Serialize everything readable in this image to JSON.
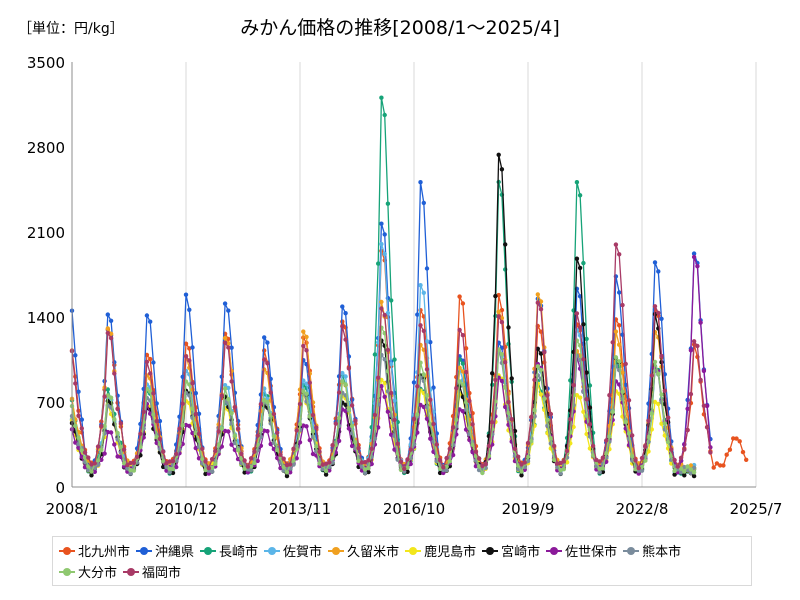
{
  "unit_label": "［単位：円/kg］",
  "chart_data": {
    "type": "line",
    "title": "みかん価格の推移[2008/1～2025/4]",
    "xlabel": "",
    "ylabel": "",
    "ylim": [
      0,
      3500
    ],
    "yticks": [
      0,
      700,
      1400,
      2100,
      2800,
      3500
    ],
    "xticks": [
      {
        "label": "2008/1",
        "pos": 2008.0
      },
      {
        "label": "2010/12",
        "pos": 2010.917
      },
      {
        "label": "2013/11",
        "pos": 2013.833
      },
      {
        "label": "2016/10",
        "pos": 2016.75
      },
      {
        "label": "2019/9",
        "pos": 2019.667
      },
      {
        "label": "2022/8",
        "pos": 2022.583
      },
      {
        "label": "2025/7",
        "pos": 2025.5
      }
    ],
    "xlim": [
      2008.0,
      2025.5
    ],
    "grid": "vertical",
    "legend_position": "bottom",
    "series": [
      {
        "name": "北九州市",
        "color": "#e8531f",
        "base": 170,
        "peaks": [
          1200,
          1320,
          1100,
          1180,
          1250,
          1100,
          1260,
          1380,
          1950,
          1450,
          1550,
          1550,
          1350,
          1350,
          1380,
          1450,
          1150,
          430
        ]
      },
      {
        "name": "沖縄県",
        "color": "#1f5fd6",
        "base": 150,
        "peaks": [
          1520,
          1420,
          1400,
          1560,
          1540,
          1250,
          1050,
          1480,
          2150,
          2480,
          1100,
          1200,
          1550,
          1620,
          1710,
          1880,
          1940,
          0
        ]
      },
      {
        "name": "長崎市",
        "color": "#16a378",
        "base": 140,
        "peaks": [
          720,
          780,
          820,
          800,
          700,
          760,
          820,
          900,
          3230,
          820,
          1050,
          2500,
          850,
          2540,
          1040,
          1000,
          0,
          0
        ]
      },
      {
        "name": "佐賀市",
        "color": "#5bb5e8",
        "base": 150,
        "peaks": [
          600,
          750,
          850,
          950,
          820,
          780,
          900,
          950,
          2000,
          1650,
          950,
          1150,
          1000,
          1300,
          1050,
          950,
          0,
          0
        ]
      },
      {
        "name": "久留米市",
        "color": "#f0a020",
        "base": 165,
        "peaks": [
          750,
          1300,
          900,
          1050,
          1250,
          980,
          1280,
          850,
          1500,
          1200,
          1000,
          1450,
          1580,
          1100,
          1250,
          1300,
          0,
          0
        ]
      },
      {
        "name": "鹿児島市",
        "color": "#f2e61c",
        "base": 145,
        "peaks": [
          540,
          650,
          700,
          720,
          650,
          700,
          750,
          780,
          900,
          800,
          760,
          900,
          820,
          780,
          800,
          700,
          0,
          0
        ]
      },
      {
        "name": "宮崎市",
        "color": "#111111",
        "base": 120,
        "peaks": [
          560,
          720,
          650,
          780,
          720,
          700,
          800,
          700,
          1200,
          900,
          800,
          2760,
          1150,
          1880,
          1050,
          1400,
          0,
          0
        ]
      },
      {
        "name": "佐世保市",
        "color": "#8b1a9a",
        "base": 140,
        "peaks": [
          480,
          440,
          660,
          540,
          480,
          470,
          500,
          620,
          800,
          700,
          650,
          900,
          1000,
          1050,
          900,
          1000,
          1900,
          0
        ]
      },
      {
        "name": "熊本市",
        "color": "#7a8c9c",
        "base": 140,
        "peaks": [
          640,
          700,
          750,
          780,
          700,
          680,
          760,
          800,
          1100,
          900,
          850,
          1100,
          950,
          1100,
          1000,
          950,
          0,
          0
        ]
      },
      {
        "name": "大分市",
        "color": "#8fc870",
        "base": 145,
        "peaks": [
          700,
          760,
          800,
          850,
          780,
          740,
          800,
          870,
          1300,
          1000,
          900,
          1150,
          1000,
          1200,
          1050,
          1000,
          0,
          0
        ]
      },
      {
        "name": "福岡市",
        "color": "#a83a66",
        "base": 180,
        "peaks": [
          1150,
          1250,
          1000,
          1100,
          1200,
          1050,
          1150,
          1300,
          1500,
          1350,
          1300,
          1400,
          1500,
          1400,
          2020,
          1500,
          1200,
          0
        ]
      }
    ]
  }
}
